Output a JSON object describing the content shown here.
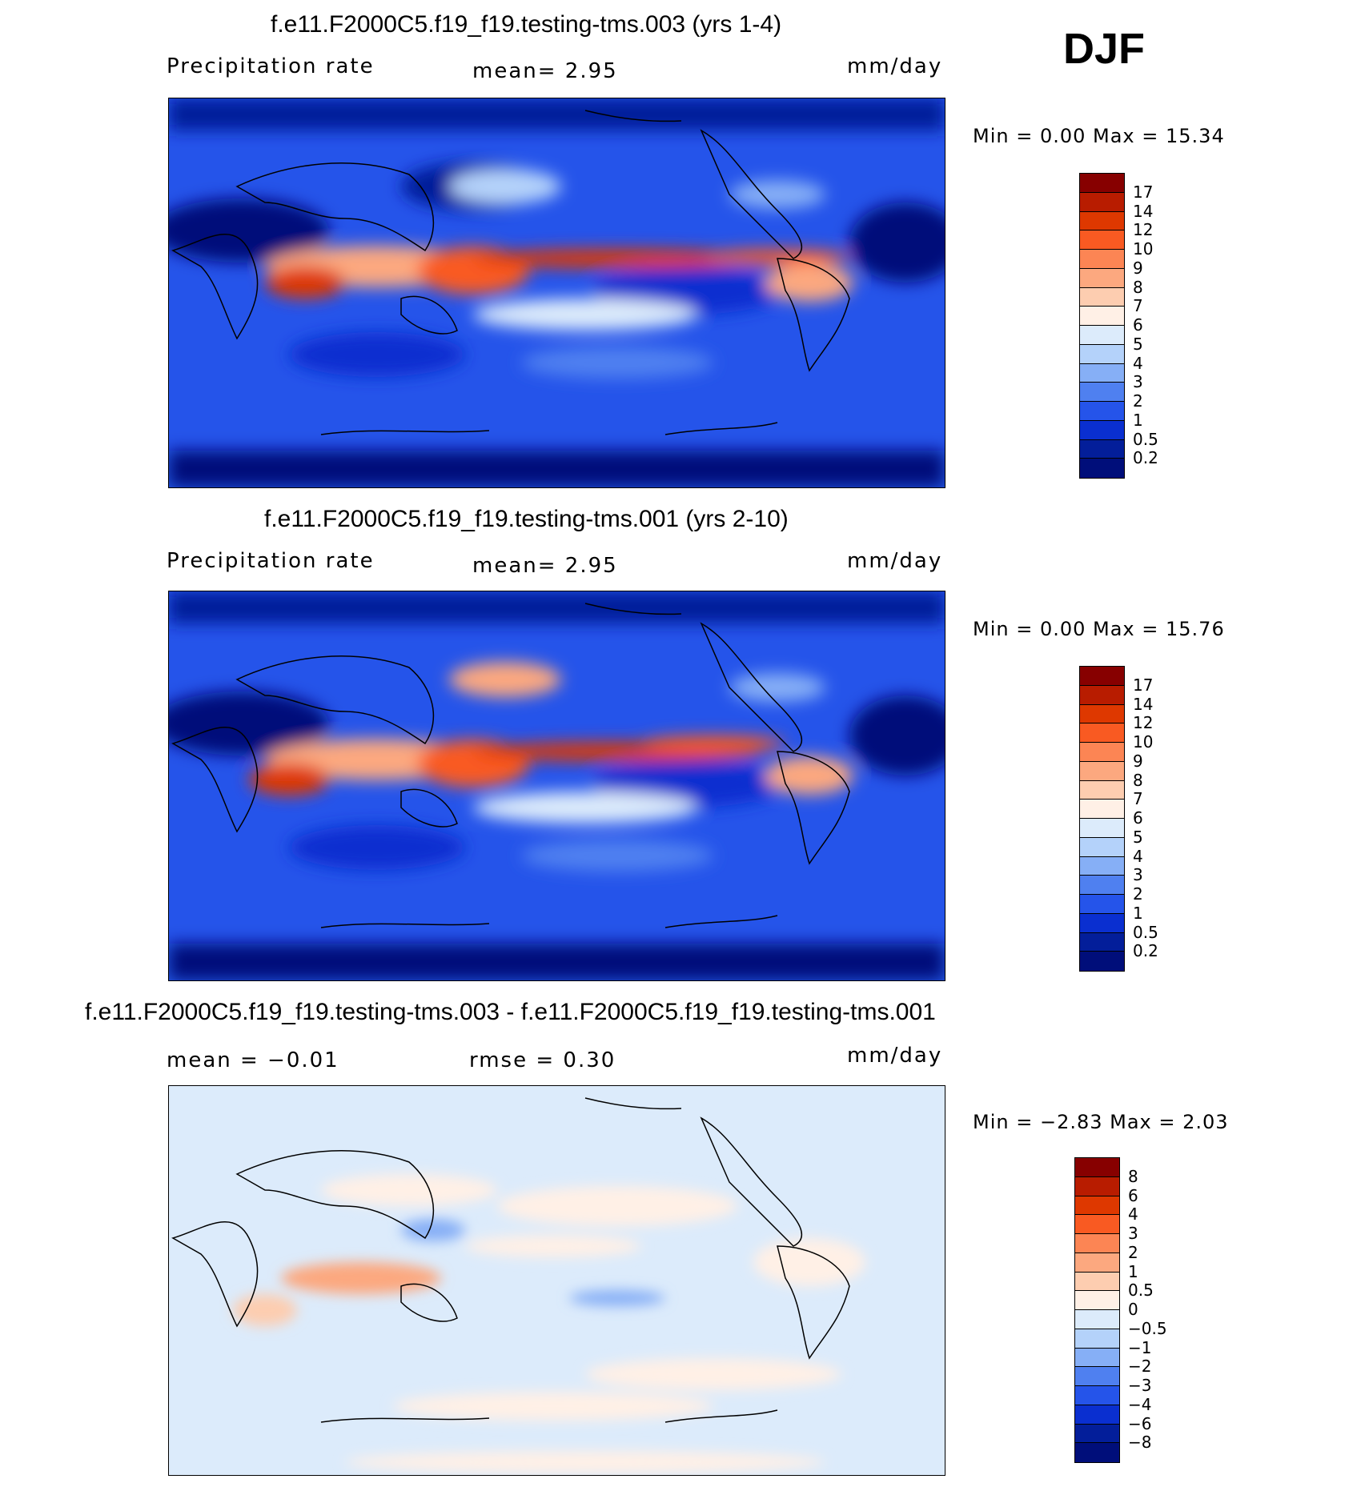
{
  "season": "DJF",
  "panels": [
    {
      "title": "f.e11.F2000C5.f19_f19.testing-tms.003 (yrs 1-4)",
      "left_label": "Precipitation rate",
      "center_label": "mean=    2.95",
      "right_label": "mm/day",
      "minmax": "Min =    0.00  Max =   15.34",
      "colorbar": {
        "labels": [
          "17",
          "14",
          "12",
          "10",
          "9",
          "8",
          "7",
          "6",
          "5",
          "4",
          "3",
          "2",
          "1",
          "0.5",
          "0.2"
        ],
        "colors": [
          "#870000",
          "#b81c00",
          "#de3800",
          "#f95a22",
          "#fc8554",
          "#fca87f",
          "#fdcdb0",
          "#fff0e6",
          "#dcebfb",
          "#b4d2fa",
          "#86aff6",
          "#4f80f0",
          "#2554ea",
          "#0a2fd0",
          "#031e9a",
          "#000e7a"
        ]
      }
    },
    {
      "title": "f.e11.F2000C5.f19_f19.testing-tms.001 (yrs 2-10)",
      "left_label": "Precipitation rate",
      "center_label": "mean=    2.95",
      "right_label": "mm/day",
      "minmax": "Min =    0.00  Max =   15.76",
      "colorbar": {
        "labels": [
          "17",
          "14",
          "12",
          "10",
          "9",
          "8",
          "7",
          "6",
          "5",
          "4",
          "3",
          "2",
          "1",
          "0.5",
          "0.2"
        ],
        "colors": [
          "#870000",
          "#b81c00",
          "#de3800",
          "#f95a22",
          "#fc8554",
          "#fca87f",
          "#fdcdb0",
          "#fff0e6",
          "#dcebfb",
          "#b4d2fa",
          "#86aff6",
          "#4f80f0",
          "#2554ea",
          "#0a2fd0",
          "#031e9a",
          "#000e7a"
        ]
      }
    },
    {
      "title": "f.e11.F2000C5.f19_f19.testing-tms.003 - f.e11.F2000C5.f19_f19.testing-tms.001",
      "left_label": "mean =   −0.01",
      "center_label": "rmse =    0.30",
      "right_label": "mm/day",
      "minmax": "Min =  −2.83  Max =    2.03",
      "colorbar": {
        "labels": [
          "8",
          "6",
          "4",
          "3",
          "2",
          "1",
          "0.5",
          "0",
          "−0.5",
          "−1",
          "−2",
          "−3",
          "−4",
          "−6",
          "−8"
        ],
        "colors": [
          "#870000",
          "#b81c00",
          "#de3800",
          "#f95a22",
          "#fc8554",
          "#fca87f",
          "#fdcdb0",
          "#fff0e6",
          "#dcebfb",
          "#b4d2fa",
          "#86aff6",
          "#4f80f0",
          "#2554ea",
          "#0a2fd0",
          "#031e9a",
          "#000e7a"
        ]
      }
    }
  ]
}
